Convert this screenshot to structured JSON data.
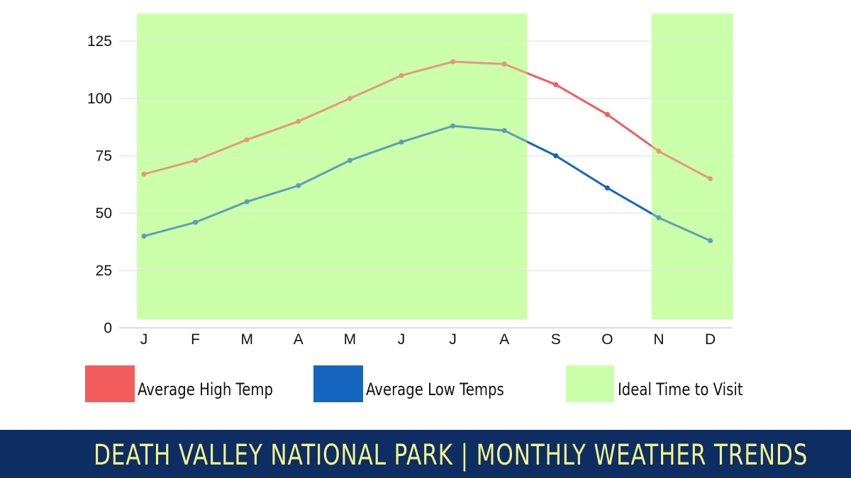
{
  "chart_data": {
    "type": "line",
    "categories": [
      "J",
      "F",
      "M",
      "A",
      "M",
      "J",
      "J",
      "A",
      "S",
      "O",
      "N",
      "D"
    ],
    "series": [
      {
        "name": "Average High Temp",
        "color": "#f25c5c",
        "values": [
          67,
          73,
          82,
          90,
          100,
          110,
          116,
          115,
          106,
          93,
          77,
          65
        ]
      },
      {
        "name": "Average Low Temps",
        "color": "#1565c0",
        "values": [
          40,
          46,
          55,
          62,
          73,
          81,
          88,
          86,
          75,
          61,
          48,
          38
        ]
      }
    ],
    "highlight_ranges": [
      {
        "name": "Ideal Time to Visit",
        "color": "#ccffaa",
        "months": [
          "J",
          "A"
        ]
      },
      {
        "name": "Ideal Time to Visit",
        "color": "#ccffaa",
        "months": [
          "N",
          "D"
        ]
      }
    ],
    "ylim": [
      0,
      125
    ],
    "yticks": [
      0,
      25,
      50,
      75,
      100,
      125
    ],
    "grid": true,
    "legend_position": "bottom"
  },
  "legend": [
    {
      "label": "Average High Temp",
      "color": "#f25c5c"
    },
    {
      "label": "Average Low Temps",
      "color": "#1565c0"
    },
    {
      "label": "Ideal Time to Visit",
      "color": "#ccffaa"
    }
  ],
  "footer": {
    "title": "DEATH VALLEY NATIONAL PARK | MONTHLY WEATHER TRENDS",
    "background": "#0e2d63",
    "text_color": "#f2f28c"
  }
}
